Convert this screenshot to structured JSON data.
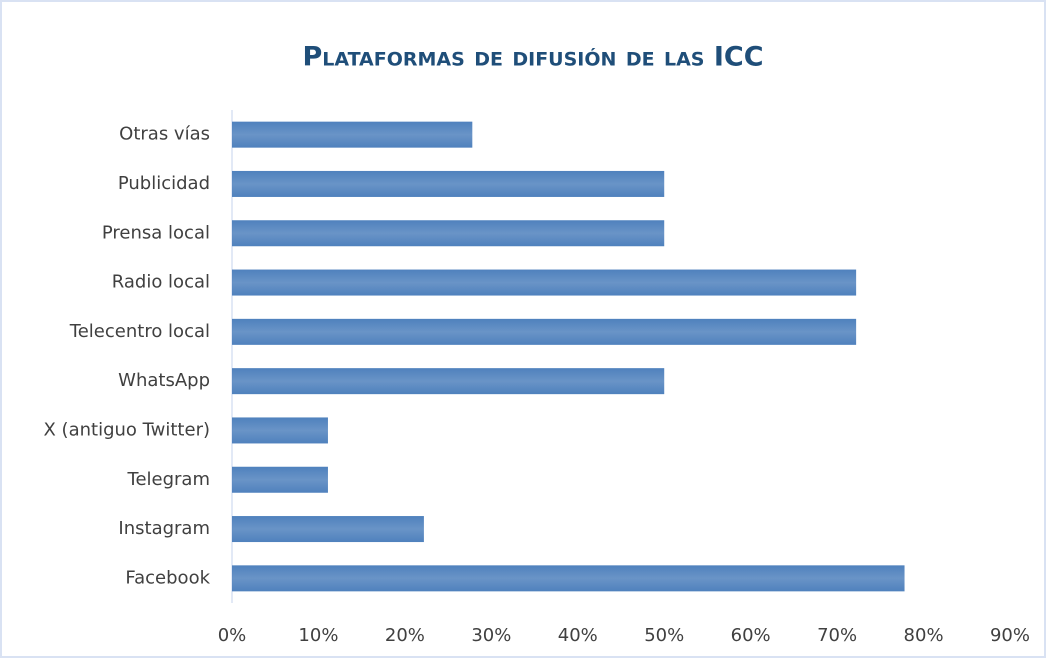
{
  "chart_data": {
    "type": "bar",
    "orientation": "horizontal",
    "title": "Plataformas de difusión de las ICC",
    "categories": [
      "Facebook",
      "Instagram",
      "Telegram",
      "X (antiguo Twitter)",
      "WhatsApp",
      "Telecentro local",
      "Radio local",
      "Prensa local",
      "Publicidad",
      "Otras vías"
    ],
    "values": [
      77.8,
      22.2,
      11.1,
      11.1,
      50,
      72.2,
      72.2,
      50,
      50,
      27.8
    ],
    "color": "#4f81bd",
    "xlim": [
      0,
      90
    ],
    "xticks": [
      {
        "value": 0,
        "label": "0%"
      },
      {
        "value": 10,
        "label": "10%"
      },
      {
        "value": 20,
        "label": "20%"
      },
      {
        "value": 30,
        "label": "30%"
      },
      {
        "value": 40,
        "label": "40%"
      },
      {
        "value": 50,
        "label": "50%"
      },
      {
        "value": 60,
        "label": "60%"
      },
      {
        "value": 70,
        "label": "70%"
      },
      {
        "value": 80,
        "label": "80%"
      },
      {
        "value": 90,
        "label": "90%"
      }
    ],
    "grid": false
  }
}
